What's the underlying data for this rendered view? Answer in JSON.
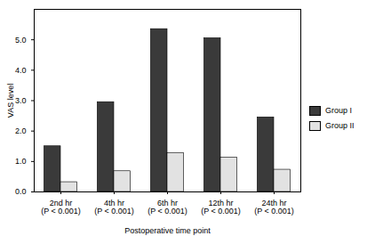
{
  "chart_data": {
    "type": "bar",
    "x_label": "Postoperative time point",
    "y_label": "VAS level",
    "categories": [
      "2nd hr\n(P < 0.001)",
      "4th hr\n(P < 0.001)",
      "6th hr\n(P < 0.001)",
      "12th hr\n(P < 0.001)",
      "24th hr\n(P < 0.001)"
    ],
    "series": [
      {
        "name": "Group I",
        "color": "#3a3a3a",
        "values": [
          1.5,
          2.95,
          5.35,
          5.05,
          2.45
        ]
      },
      {
        "name": "Group II",
        "color": "#e2e2e2",
        "values": [
          0.32,
          0.68,
          1.28,
          1.13,
          0.73
        ]
      }
    ],
    "ylim": [
      0,
      6
    ],
    "yticks": [
      0,
      1,
      2,
      3,
      4,
      5
    ],
    "grid": false,
    "legend": "right"
  }
}
